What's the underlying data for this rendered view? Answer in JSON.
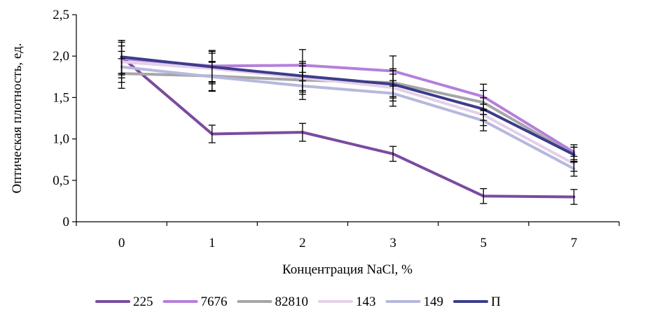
{
  "chart_data": {
    "type": "line",
    "xlabel": "Концентрация NaCl, %",
    "ylabel": "Оптическая плотность, ед.",
    "categories": [
      "0",
      "1",
      "2",
      "3",
      "5",
      "7"
    ],
    "ylim": [
      0,
      2.5
    ],
    "yticks": [
      "0",
      "0,5",
      "1,0",
      "1,5",
      "2,0",
      "2,5"
    ],
    "grid": false,
    "legend_position": "bottom",
    "error_bar_fraction": 0.1,
    "series": [
      {
        "name": "225",
        "color": "#7b4aa0",
        "values": [
          1.99,
          1.06,
          1.08,
          0.82,
          0.31,
          0.3
        ]
      },
      {
        "name": "7676",
        "color": "#b57fdc",
        "values": [
          1.97,
          1.88,
          1.89,
          1.82,
          1.51,
          0.84
        ]
      },
      {
        "name": "82810",
        "color": "#a6a6a6",
        "values": [
          1.79,
          1.76,
          1.71,
          1.68,
          1.44,
          0.81
        ]
      },
      {
        "name": "143",
        "color": "#e5d0e8",
        "values": [
          1.93,
          1.85,
          1.74,
          1.62,
          1.29,
          0.7
        ]
      },
      {
        "name": "149",
        "color": "#b6b8dc",
        "values": [
          1.87,
          1.75,
          1.64,
          1.55,
          1.22,
          0.64
        ]
      },
      {
        "name": "П",
        "color": "#3c3c8c",
        "values": [
          1.99,
          1.87,
          1.76,
          1.66,
          1.36,
          0.81
        ]
      }
    ]
  }
}
